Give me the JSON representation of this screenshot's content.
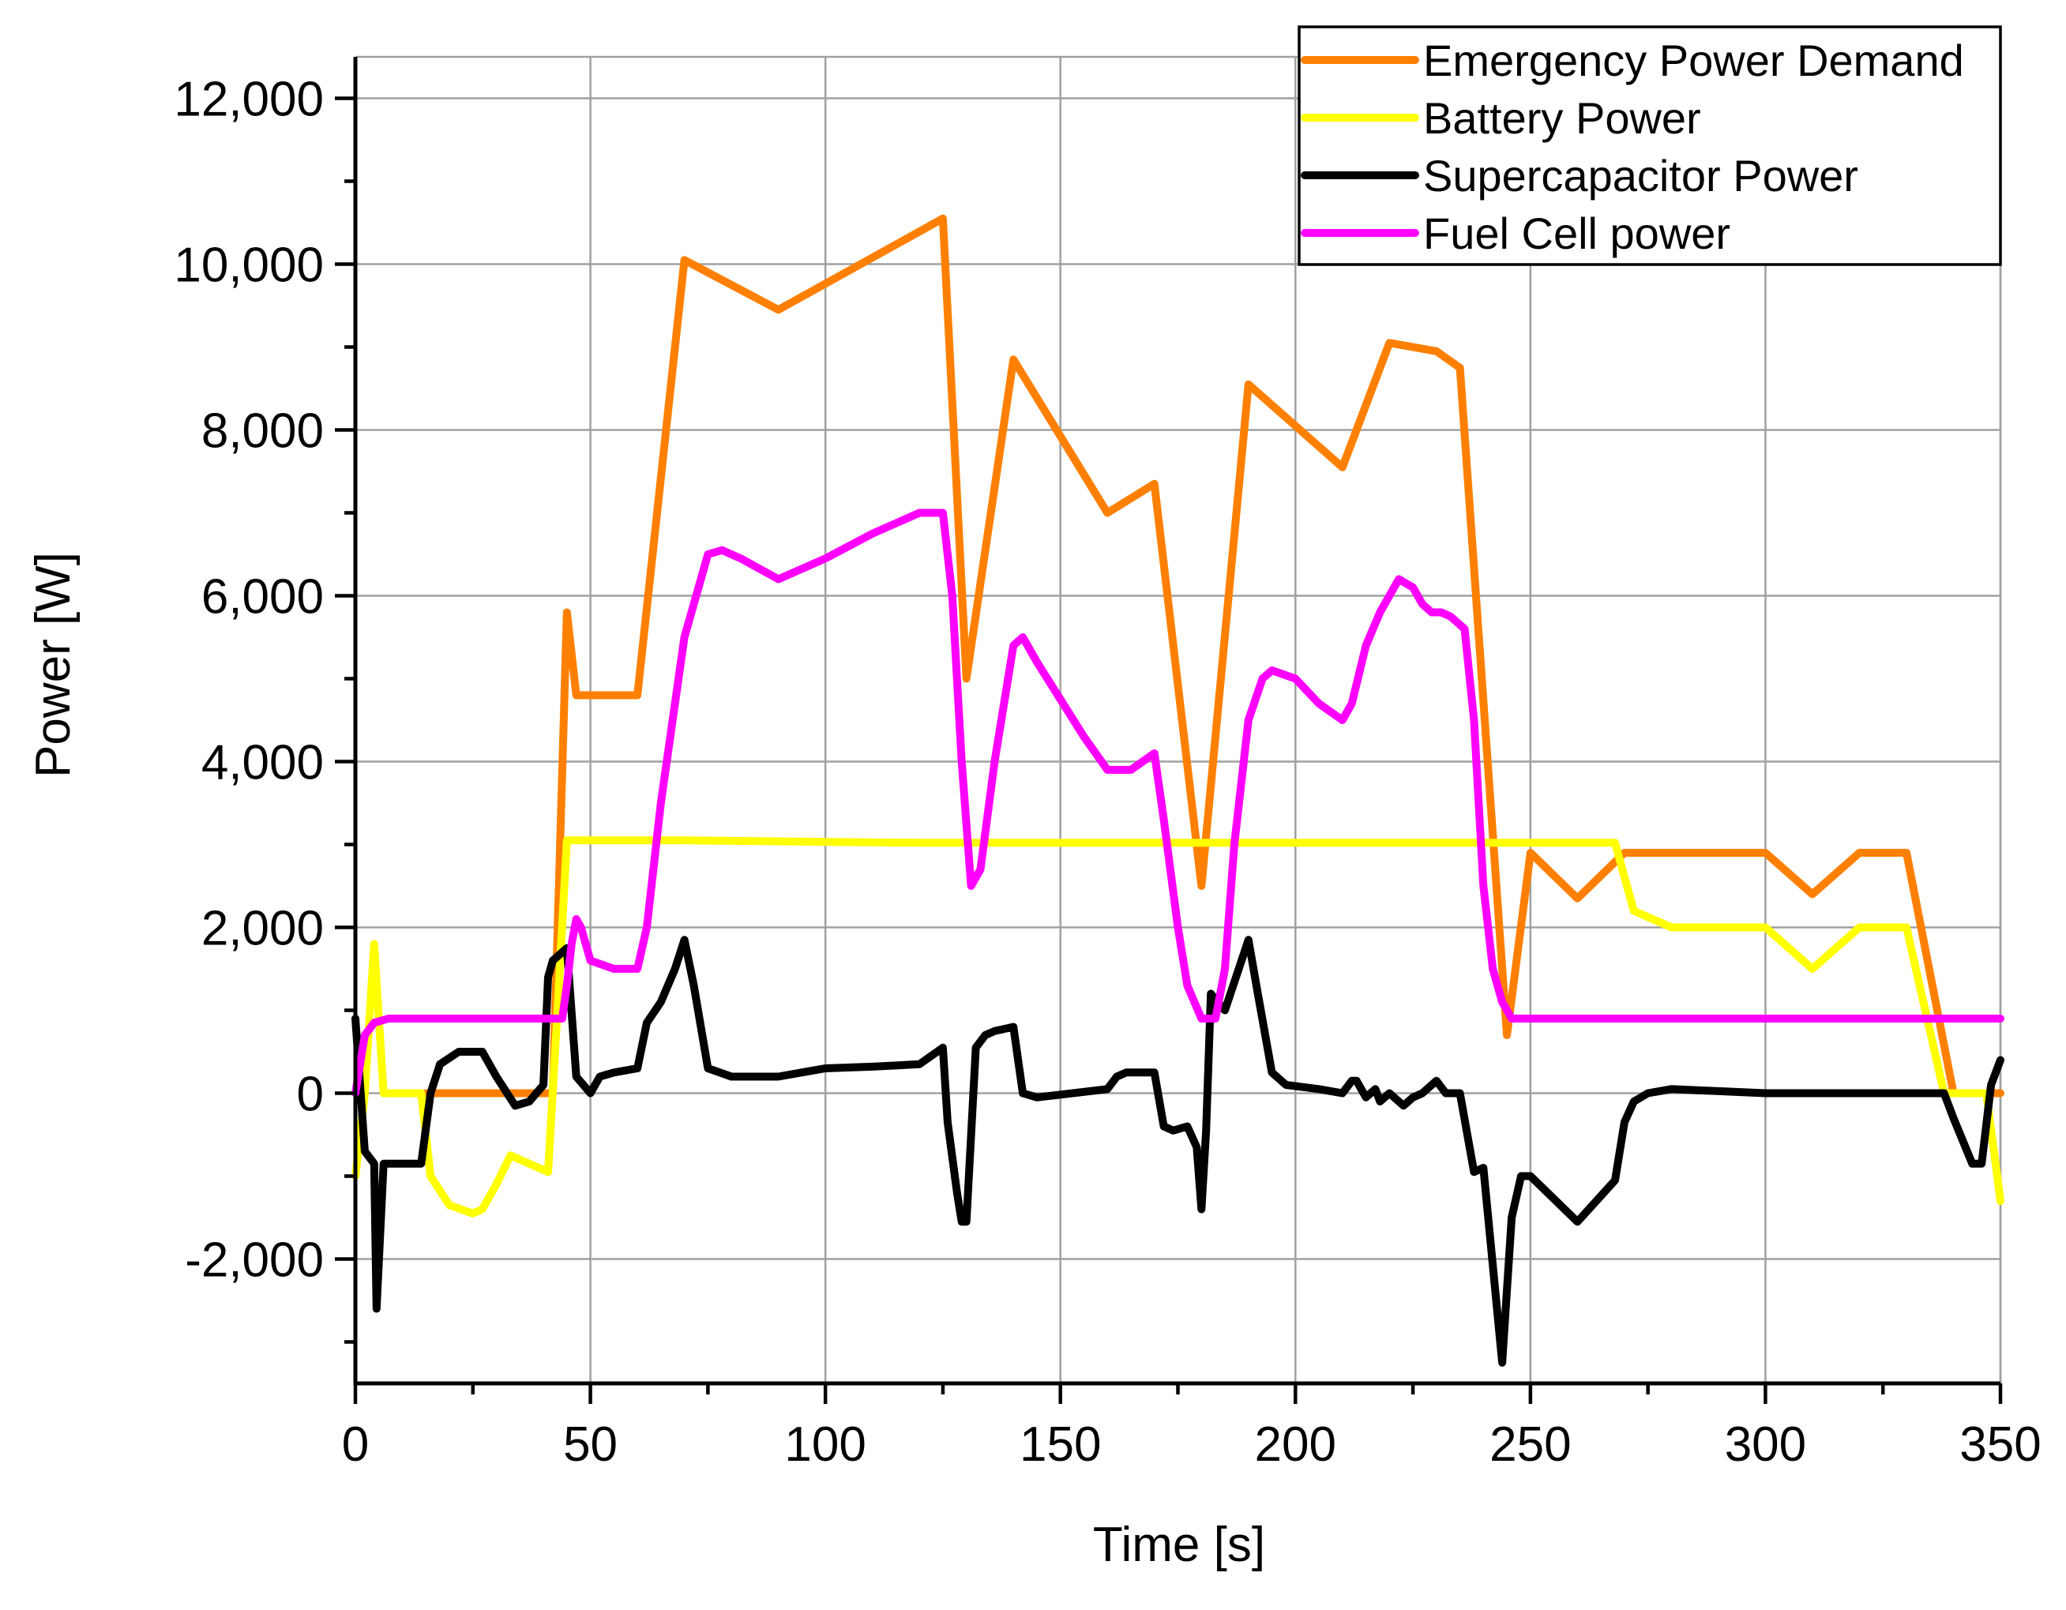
{
  "chart_data": {
    "type": "line",
    "title": "",
    "xlabel": "Time [s]",
    "ylabel": "Power [W]",
    "xlim": [
      0,
      350
    ],
    "ylim": [
      -3500,
      12500
    ],
    "xticks": [
      0,
      50,
      100,
      150,
      200,
      250,
      300,
      350
    ],
    "xtick_labels": [
      "0",
      "50",
      "100",
      "150",
      "200",
      "250",
      "300",
      "350"
    ],
    "yticks": [
      -2000,
      0,
      2000,
      4000,
      6000,
      8000,
      10000,
      12000
    ],
    "ytick_labels": [
      "-2,000",
      "0",
      "2,000",
      "4,000",
      "6,000",
      "8,000",
      "10,000",
      "12,000"
    ],
    "grid": true,
    "legend_position": "top-right",
    "series": [
      {
        "name": "Emergency Power Demand",
        "color": "#FF8000",
        "x": [
          15,
          42,
          45,
          47,
          50,
          60,
          70,
          90,
          125,
          130,
          140,
          160,
          170,
          180,
          190,
          210,
          220,
          230,
          235,
          245,
          250,
          260,
          270,
          300,
          310,
          320,
          330,
          340,
          350
        ],
        "y": [
          0,
          0,
          5800,
          4800,
          4800,
          4800,
          10050,
          9450,
          10550,
          5000,
          8850,
          7000,
          7350,
          2500,
          8550,
          7550,
          9050,
          8950,
          8750,
          700,
          2900,
          2350,
          2900,
          2900,
          2400,
          2900,
          2900,
          0,
          0
        ]
      },
      {
        "name": "Battery Power",
        "color": "#FFFF00",
        "x": [
          0,
          2,
          4,
          6,
          14,
          16,
          20,
          25,
          27,
          30,
          33,
          37,
          41,
          43,
          45,
          50,
          70,
          120,
          200,
          268,
          272,
          280,
          300,
          310,
          320,
          330,
          338,
          347,
          350
        ],
        "y": [
          -1000,
          0,
          1800,
          0,
          0,
          -1000,
          -1350,
          -1450,
          -1400,
          -1100,
          -750,
          -850,
          -950,
          1000,
          3050,
          3050,
          3050,
          3020,
          3020,
          3020,
          2200,
          2000,
          2000,
          1500,
          2000,
          2000,
          0,
          0,
          -1300
        ]
      },
      {
        "name": "Supercapacitor Power",
        "color": "#000000",
        "x": [
          0,
          2,
          4,
          4.5,
          6,
          14,
          16,
          18,
          22,
          27,
          30,
          34,
          37,
          40,
          41,
          42,
          45,
          47,
          50,
          52,
          55,
          60,
          62,
          65,
          68,
          70,
          72,
          75,
          80,
          90,
          100,
          110,
          120,
          125,
          126,
          128,
          129,
          130,
          132,
          134,
          136,
          140,
          142,
          145,
          160,
          162,
          164,
          170,
          172,
          174,
          177,
          179,
          180,
          181,
          182,
          185,
          190,
          192,
          195,
          198,
          205,
          210,
          212,
          213,
          215,
          217,
          218,
          220,
          223,
          225,
          227,
          230,
          232,
          235,
          238,
          240,
          244,
          246,
          248,
          250,
          260,
          268,
          270,
          272,
          275,
          280,
          300,
          320,
          338,
          340,
          344,
          346,
          348,
          350
        ],
        "y": [
          900,
          -700,
          -850,
          -2600,
          -850,
          -850,
          0,
          350,
          500,
          500,
          200,
          -150,
          -100,
          100,
          1400,
          1600,
          1750,
          200,
          0,
          200,
          250,
          300,
          850,
          1100,
          1500,
          1850,
          1300,
          300,
          200,
          200,
          300,
          320,
          350,
          550,
          -350,
          -1200,
          -1550,
          -1550,
          550,
          700,
          750,
          800,
          0,
          -50,
          50,
          200,
          250,
          250,
          -400,
          -450,
          -400,
          -650,
          -1400,
          -450,
          1200,
          1000,
          1850,
          1200,
          250,
          100,
          50,
          0,
          150,
          150,
          -50,
          50,
          -100,
          0,
          -150,
          -50,
          0,
          150,
          0,
          0,
          -950,
          -900,
          -3250,
          -1500,
          -1000,
          -1000,
          -1550,
          -1050,
          -350,
          -100,
          0,
          50,
          0,
          0,
          0,
          -300,
          -850,
          -850,
          100,
          400
        ]
      },
      {
        "name": "Fuel Cell power",
        "color": "#FF00FF",
        "x": [
          0,
          2,
          4,
          7,
          15,
          30,
          44,
          45,
          46,
          47,
          48,
          50,
          55,
          60,
          62,
          65,
          70,
          75,
          78,
          82,
          90,
          100,
          110,
          120,
          125,
          127,
          129,
          131,
          133,
          136,
          140,
          142,
          145,
          155,
          160,
          165,
          170,
          172,
          175,
          177,
          180,
          183,
          185,
          187,
          190,
          193,
          195,
          200,
          205,
          210,
          212,
          215,
          218,
          220,
          222,
          225,
          227,
          229,
          231,
          233,
          236,
          238,
          240,
          242,
          244,
          246,
          250,
          270,
          300,
          340,
          350
        ],
        "y": [
          0,
          700,
          850,
          900,
          900,
          900,
          900,
          1300,
          1800,
          2100,
          2000,
          1600,
          1500,
          1500,
          2000,
          3500,
          5500,
          6500,
          6550,
          6450,
          6200,
          6450,
          6750,
          7000,
          7000,
          6000,
          4000,
          2500,
          2700,
          4000,
          5400,
          5500,
          5200,
          4300,
          3900,
          3900,
          4100,
          3300,
          2000,
          1300,
          900,
          900,
          1500,
          3000,
          4500,
          5000,
          5100,
          5000,
          4700,
          4500,
          4700,
          5400,
          5800,
          6000,
          6200,
          6100,
          5900,
          5800,
          5800,
          5750,
          5600,
          4500,
          2500,
          1500,
          1100,
          900,
          900,
          900,
          900,
          900,
          900
        ]
      }
    ]
  }
}
